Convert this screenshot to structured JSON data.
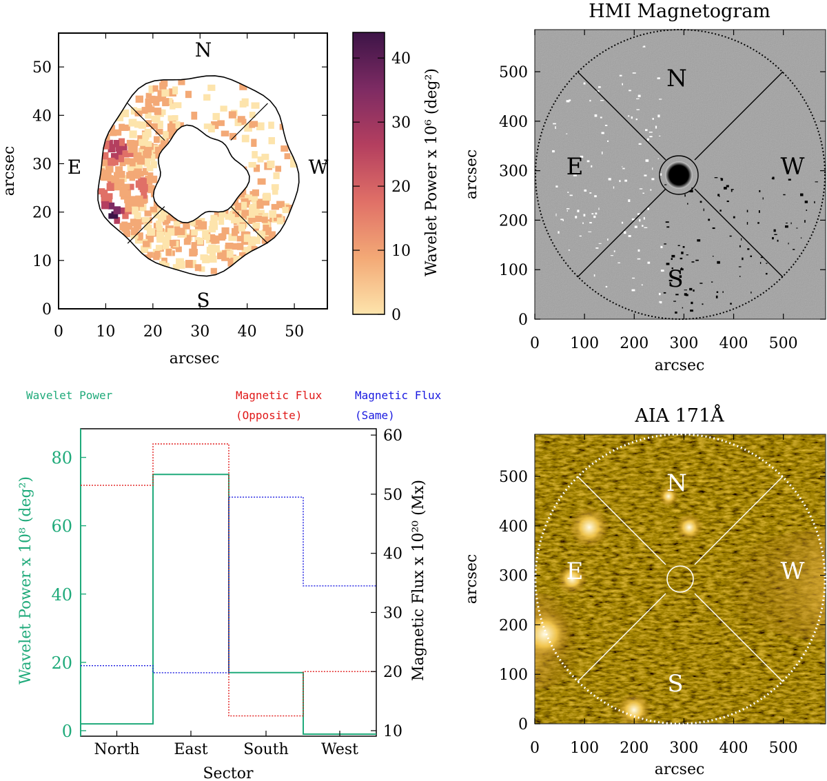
{
  "chart_data": [
    {
      "type": "heatmap",
      "panel": "top-left",
      "title": "",
      "xlabel": "arcsec",
      "ylabel": "arcsec",
      "xlim": [
        0,
        57
      ],
      "ylim": [
        0,
        57
      ],
      "xticks": [
        "0",
        "10",
        "20",
        "30",
        "40",
        "50"
      ],
      "yticks": [
        "0",
        "10",
        "20",
        "30",
        "40",
        "50"
      ],
      "compass": {
        "north": "N",
        "south": "S",
        "east": "E",
        "west": "W"
      },
      "colorbar": {
        "label": "Wavelet Power x 10⁶ (deg²)",
        "range": [
          0,
          44
        ],
        "ticks": [
          "0",
          "10",
          "20",
          "30",
          "40"
        ],
        "colors": [
          "#fde4ac",
          "#f3a976",
          "#e07067",
          "#b43f5f",
          "#7d2b63",
          "#3d1447"
        ]
      },
      "hotspots": [
        {
          "x": 11,
          "y": 20,
          "value": 44
        },
        {
          "x": 12,
          "y": 33,
          "value": 32
        },
        {
          "x": 10,
          "y": 25,
          "value": 20
        },
        {
          "x": 17,
          "y": 25,
          "value": 18
        },
        {
          "x": 20,
          "y": 43,
          "value": 8
        },
        {
          "x": 28,
          "y": 12,
          "value": 8
        }
      ]
    },
    {
      "type": "image",
      "panel": "top-right",
      "title": "HMI Magnetogram",
      "xlabel": "arcsec",
      "ylabel": "arcsec",
      "xlim": [
        0,
        585
      ],
      "ylim": [
        0,
        585
      ],
      "xticks": [
        "0",
        "100",
        "200",
        "300",
        "400",
        "500"
      ],
      "yticks": [
        "0",
        "100",
        "200",
        "300",
        "400",
        "500"
      ],
      "compass": {
        "north": "N",
        "south": "S",
        "east": "E",
        "west": "W"
      },
      "sunspot_center": [
        292,
        292
      ]
    },
    {
      "type": "bar",
      "panel": "bottom-left",
      "style": "step",
      "categories": [
        "North",
        "East",
        "South",
        "West"
      ],
      "xlabel": "Sector",
      "ylabel": "Wavelet Power x 10⁸ (deg²)",
      "ylim": [
        0,
        90
      ],
      "yticks": [
        "0",
        "20",
        "40",
        "60",
        "80"
      ],
      "y2label": "Magnetic Flux x 10²⁰ (Mx)",
      "y2lim": [
        10,
        62
      ],
      "y2ticks": [
        "10",
        "20",
        "30",
        "40",
        "50",
        "60"
      ],
      "series": [
        {
          "name": "Wavelet Power",
          "axis": "left",
          "color": "#1faa7a",
          "values": [
            2,
            75,
            17,
            -1
          ]
        },
        {
          "name": "Magnetic Flux (Opposite)",
          "axis": "right",
          "color": "#e01818",
          "values": [
            51.5,
            58.5,
            12.5,
            20
          ]
        },
        {
          "name": "Magnetic Flux (Same)",
          "axis": "right",
          "color": "#1818e0",
          "values": [
            21,
            19.8,
            49.5,
            34.5
          ]
        }
      ],
      "legend": {
        "wavelet": "Wavelet Power",
        "opposite_line1": "Magnetic Flux",
        "opposite_line2": "(Opposite)",
        "same_line1": "Magnetic Flux",
        "same_line2": "(Same)"
      }
    },
    {
      "type": "image",
      "panel": "bottom-right",
      "title": "AIA 171Å",
      "xlabel": "arcsec",
      "ylabel": "arcsec",
      "xlim": [
        0,
        585
      ],
      "ylim": [
        0,
        585
      ],
      "xticks": [
        "0",
        "100",
        "200",
        "300",
        "400",
        "500"
      ],
      "yticks": [
        "0",
        "100",
        "200",
        "300",
        "400",
        "500"
      ],
      "compass": {
        "north": "N",
        "south": "S",
        "east": "E",
        "west": "W"
      }
    }
  ]
}
